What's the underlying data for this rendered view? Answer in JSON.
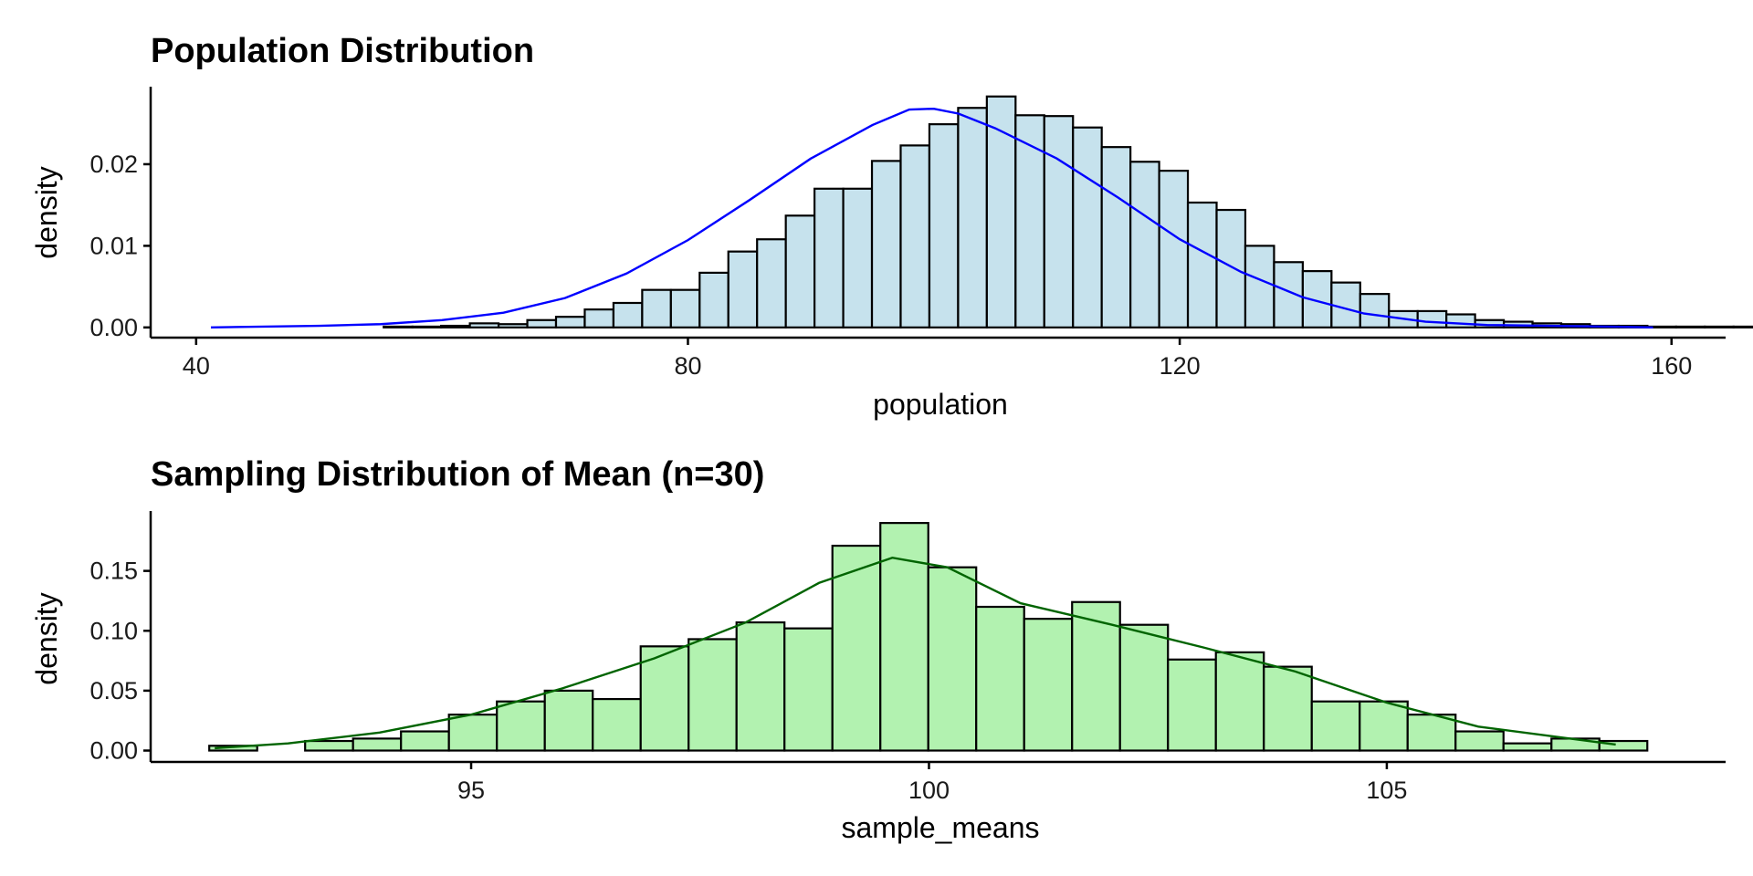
{
  "chart_data": [
    {
      "type": "bar",
      "title": "Population Distribution",
      "xlabel": "population",
      "ylabel": "density",
      "xlim": [
        36.3,
        164.4
      ],
      "ylim": [
        -0.00125,
        0.0295
      ],
      "x_ticks": [
        40,
        80,
        120,
        160
      ],
      "x_tick_labels": [
        "40",
        "80",
        "120",
        "160"
      ],
      "y_ticks": [
        0.0,
        0.01,
        0.02
      ],
      "y_tick_labels": [
        "0.00",
        "0.01",
        "0.02"
      ],
      "bin_start": 41.24,
      "bin_width": 2.336,
      "values": [
        0.0,
        0.0,
        0.0,
        0.0,
        0.0,
        0.0,
        0.0001,
        0.0001,
        0.0002,
        0.0005,
        0.0004,
        0.0009,
        0.0013,
        0.0022,
        0.003,
        0.0046,
        0.0046,
        0.0067,
        0.0093,
        0.0108,
        0.0137,
        0.017,
        0.017,
        0.0204,
        0.0223,
        0.0249,
        0.0269,
        0.0283,
        0.026,
        0.0259,
        0.0245,
        0.0221,
        0.0203,
        0.0192,
        0.0153,
        0.0144,
        0.01,
        0.008,
        0.0069,
        0.0055,
        0.0041,
        0.002,
        0.002,
        0.0016,
        0.0009,
        0.0007,
        0.0005,
        0.0004,
        0.0002,
        0.0002,
        0.0001,
        0.0001,
        0.0001,
        0.0001,
        0.0001
      ],
      "density_x": [
        41.2,
        50,
        55,
        60,
        65,
        70,
        75,
        80,
        85,
        90,
        95,
        98,
        100,
        102,
        105,
        110,
        115,
        120,
        125,
        130,
        135,
        140,
        145,
        150,
        155,
        158.5
      ],
      "density_y": [
        0.0,
        0.0002,
        0.0004,
        0.0009,
        0.0018,
        0.0036,
        0.0066,
        0.0107,
        0.0156,
        0.0207,
        0.0248,
        0.0267,
        0.0268,
        0.0262,
        0.0244,
        0.0207,
        0.0159,
        0.0108,
        0.0068,
        0.0037,
        0.0017,
        0.0007,
        0.0003,
        0.0002,
        0.0001,
        0.0
      ],
      "fill_color": "#c6e2ed",
      "line_color": "#0000ff",
      "grid": false,
      "legend": "none"
    },
    {
      "type": "bar",
      "title": "Sampling Distribution of Mean (n=30)",
      "xlabel": "sample_means",
      "ylabel": "density",
      "xlim": [
        91.5,
        108.7
      ],
      "ylim": [
        -0.0095,
        0.2
      ],
      "x_ticks": [
        95,
        100,
        105
      ],
      "x_tick_labels": [
        "95",
        "100",
        "105"
      ],
      "y_ticks": [
        0.0,
        0.05,
        0.1,
        0.15
      ],
      "y_tick_labels": [
        "0.00",
        "0.05",
        "0.10",
        "0.15"
      ],
      "bin_start": 92.14,
      "bin_width": 0.5235,
      "values": [
        0.004,
        0.0,
        0.008,
        0.01,
        0.016,
        0.03,
        0.041,
        0.05,
        0.043,
        0.087,
        0.093,
        0.107,
        0.102,
        0.171,
        0.19,
        0.153,
        0.12,
        0.11,
        0.124,
        0.105,
        0.076,
        0.082,
        0.07,
        0.041,
        0.041,
        0.03,
        0.016,
        0.006,
        0.01,
        0.008
      ],
      "density_x": [
        92.2,
        93,
        94,
        95,
        96,
        97,
        98,
        98.8,
        99.6,
        100.2,
        101,
        102,
        103,
        104,
        105,
        106,
        107.5
      ],
      "density_y": [
        0.002,
        0.006,
        0.015,
        0.03,
        0.052,
        0.077,
        0.107,
        0.14,
        0.161,
        0.153,
        0.123,
        0.105,
        0.086,
        0.066,
        0.04,
        0.02,
        0.005
      ],
      "fill_color": "#b2f2b0",
      "line_color": "#006400",
      "grid": false,
      "legend": "none"
    }
  ]
}
